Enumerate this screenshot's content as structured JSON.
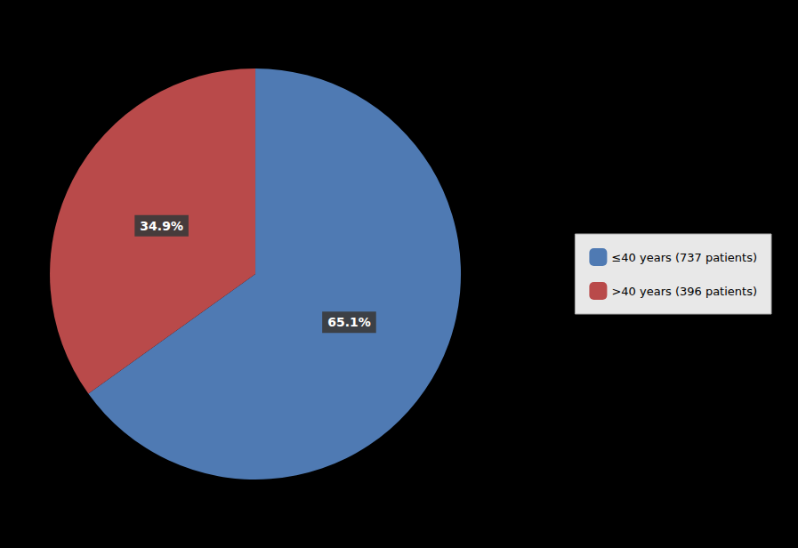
{
  "chart_data": {
    "type": "pie",
    "categories": [
      "≤40 years (737 patients)",
      ">40 years (396 patients)"
    ],
    "values": [
      65.1,
      34.9
    ],
    "value_labels": [
      "65.1%",
      "34.9%"
    ],
    "colors": [
      "#4f7ab3",
      "#b94a4a"
    ],
    "data_labels": true,
    "legend": "right"
  }
}
